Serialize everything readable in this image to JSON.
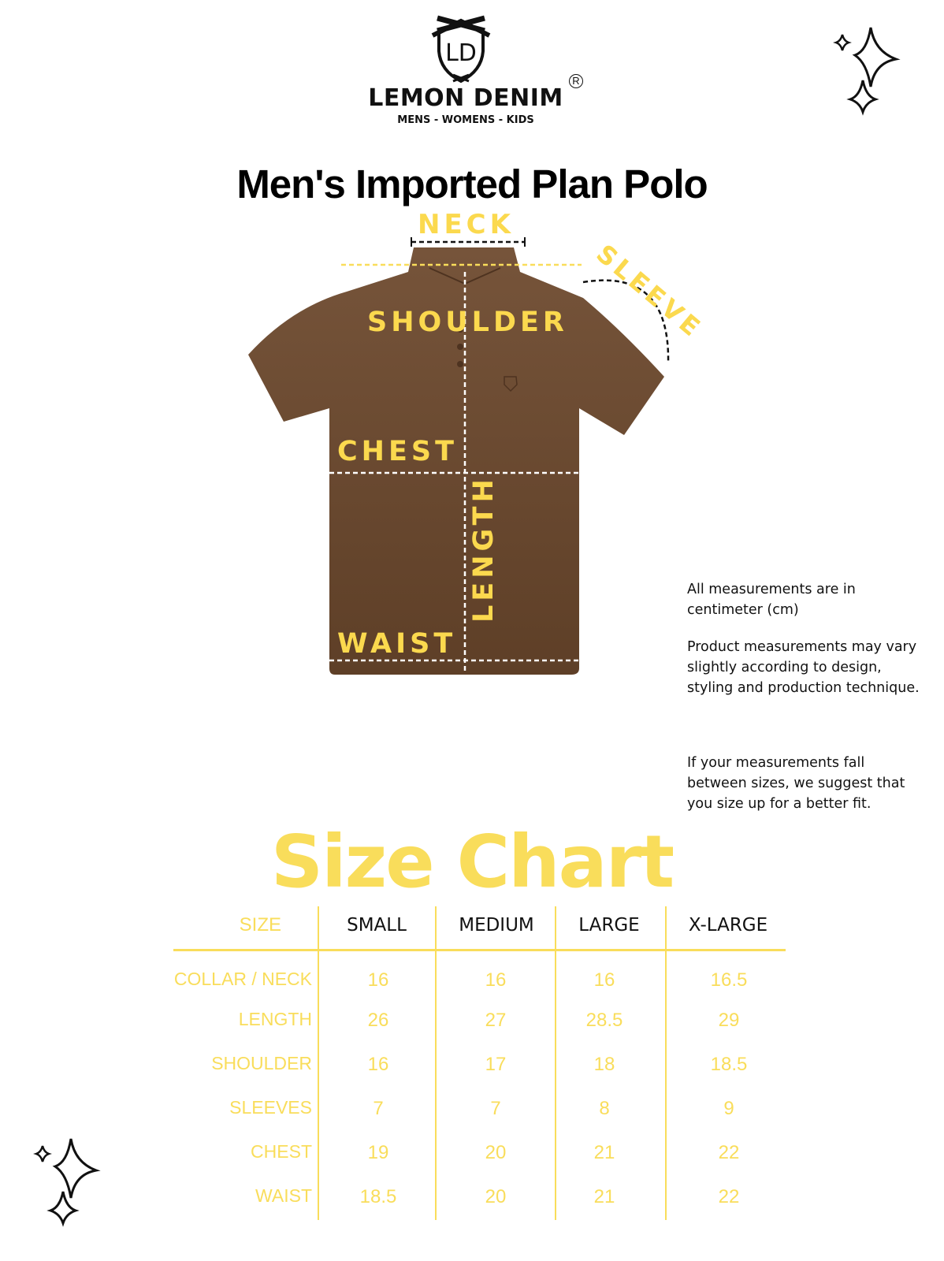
{
  "brand": {
    "name": "LEMON DENIM",
    "tagline": "MENS - WOMENS - KIDS",
    "registered": "R",
    "logo_monogram": "LD"
  },
  "title": "Men's Imported Plan Polo",
  "diagram_labels": {
    "neck": "NECK",
    "sleeve": "SLEEVE",
    "shoulder": "SHOULDER",
    "chest": "CHEST",
    "length": "LENGTH",
    "waist": "WAIST"
  },
  "notes": [
    "All measurements  are in centimeter (cm)",
    "Product measurements may vary slightly according to design, styling and production technique.",
    "If your measurements fall between sizes, we suggest that you size up for a better fit."
  ],
  "size_chart": {
    "heading": "Size Chart",
    "corner_label": "SIZE",
    "sizes": [
      "SMALL",
      "MEDIUM",
      "LARGE",
      "X-LARGE"
    ],
    "rows": [
      {
        "label": "COLLAR / NECK",
        "values": [
          "16",
          "16",
          "16",
          "16.5"
        ]
      },
      {
        "label": "LENGTH",
        "values": [
          "26",
          "27",
          "28.5",
          "29"
        ]
      },
      {
        "label": "SHOULDER",
        "values": [
          "16",
          "17",
          "18",
          "18.5"
        ]
      },
      {
        "label": "SLEEVES",
        "values": [
          "7",
          "7",
          "8",
          "9"
        ]
      },
      {
        "label": "CHEST",
        "values": [
          "19",
          "20",
          "21",
          "22"
        ]
      },
      {
        "label": "WAIST",
        "values": [
          "18.5",
          "20",
          "21",
          "22"
        ]
      }
    ]
  },
  "colors": {
    "accent_yellow": "#f9dd5b",
    "shirt_brown": "#6e4c30",
    "text": "#111111"
  }
}
